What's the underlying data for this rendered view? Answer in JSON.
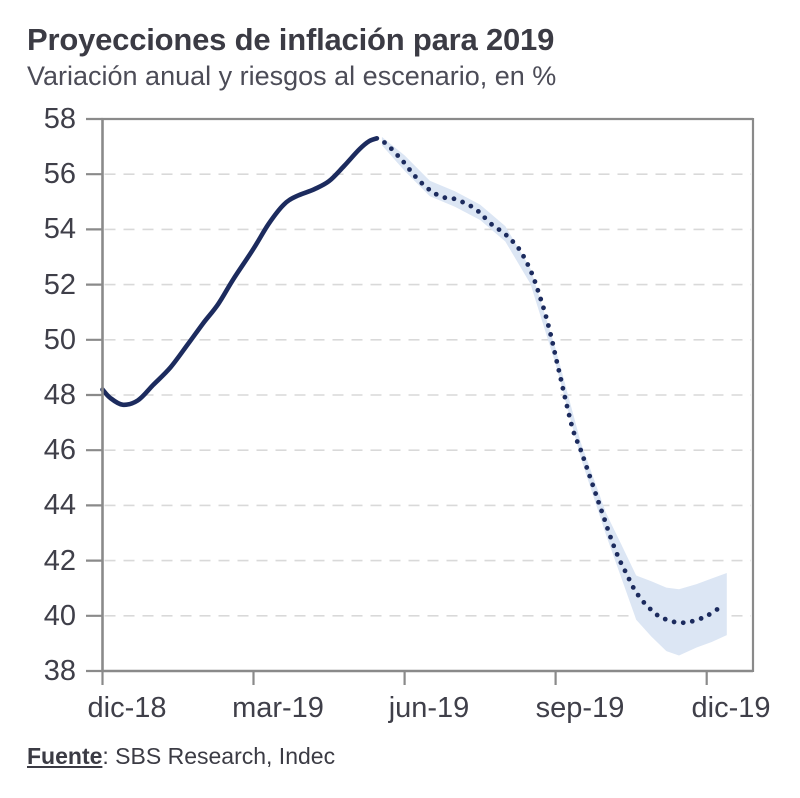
{
  "header": {
    "title": "Proyecciones de inflación para 2019",
    "subtitle": "Variación anual y riesgos al escenario, en %"
  },
  "footer": {
    "source_label": "Fuente",
    "source_separator": ": ",
    "source_text": "SBS Research, Indec"
  },
  "chart_data": {
    "type": "line",
    "title": "Proyecciones de inflación para 2019",
    "subtitle": "Variación anual y riesgos al escenario, en %",
    "ylim": [
      38,
      58
    ],
    "xlim_months": [
      0,
      12.92
    ],
    "x_unit": "month_index_from_dic18",
    "y_ticks": [
      58,
      56,
      54,
      52,
      50,
      48,
      46,
      44,
      42,
      40,
      38
    ],
    "x_ticks": [
      {
        "label": "dic-18",
        "m": 0
      },
      {
        "label": "mar-19",
        "m": 3
      },
      {
        "label": "jun-19",
        "m": 6
      },
      {
        "label": "sep-19",
        "m": 9
      },
      {
        "label": "dic-19",
        "m": 12
      }
    ],
    "grid": {
      "horizontal": true,
      "style": "dashed",
      "legend": false
    },
    "colors": {
      "line": "#1c2b5e",
      "band": "#dce6f4",
      "axis": "#8a8a8a",
      "grid": "#d9d9d9",
      "text": "#3f3f49"
    },
    "series": {
      "observed_solid": {
        "style": "solid",
        "points": [
          [
            0.0,
            48.2
          ],
          [
            0.15,
            47.9
          ],
          [
            0.4,
            47.65
          ],
          [
            0.7,
            47.8
          ],
          [
            1.0,
            48.35
          ],
          [
            1.35,
            49.0
          ],
          [
            1.7,
            49.85
          ],
          [
            2.0,
            50.6
          ],
          [
            2.3,
            51.3
          ],
          [
            2.6,
            52.2
          ],
          [
            3.0,
            53.3
          ],
          [
            3.3,
            54.2
          ],
          [
            3.6,
            54.9
          ],
          [
            3.85,
            55.2
          ],
          [
            4.2,
            55.45
          ],
          [
            4.5,
            55.75
          ],
          [
            4.8,
            56.3
          ],
          [
            5.1,
            56.9
          ],
          [
            5.3,
            57.2
          ],
          [
            5.45,
            57.3
          ]
        ]
      },
      "projection_dotted": {
        "style": "dotted",
        "points": [
          [
            5.6,
            57.15
          ],
          [
            5.75,
            56.9
          ],
          [
            5.9,
            56.6
          ],
          [
            6.0,
            56.4
          ],
          [
            6.15,
            56.05
          ],
          [
            6.3,
            55.75
          ],
          [
            6.45,
            55.5
          ],
          [
            6.6,
            55.3
          ],
          [
            6.8,
            55.15
          ],
          [
            7.0,
            55.1
          ],
          [
            7.2,
            54.95
          ],
          [
            7.4,
            54.75
          ],
          [
            7.55,
            54.5
          ],
          [
            7.75,
            54.15
          ],
          [
            7.95,
            53.9
          ],
          [
            8.1,
            53.65
          ],
          [
            8.25,
            53.35
          ],
          [
            8.4,
            52.9
          ],
          [
            8.55,
            52.3
          ],
          [
            8.7,
            51.5
          ],
          [
            8.8,
            50.9
          ],
          [
            8.9,
            50.2
          ],
          [
            9.0,
            49.4
          ],
          [
            9.1,
            48.6
          ],
          [
            9.2,
            47.8
          ],
          [
            9.35,
            46.7
          ],
          [
            9.5,
            46.0
          ],
          [
            9.65,
            45.2
          ],
          [
            9.8,
            44.4
          ],
          [
            9.95,
            43.6
          ],
          [
            10.1,
            42.8
          ],
          [
            10.25,
            42.1
          ],
          [
            10.4,
            41.55
          ],
          [
            10.55,
            41.0
          ],
          [
            10.7,
            40.6
          ],
          [
            10.85,
            40.3
          ],
          [
            11.0,
            40.05
          ],
          [
            11.15,
            39.9
          ],
          [
            11.35,
            39.78
          ],
          [
            11.55,
            39.75
          ],
          [
            11.75,
            39.82
          ],
          [
            11.95,
            39.95
          ],
          [
            12.1,
            40.1
          ],
          [
            12.3,
            40.35
          ]
        ]
      },
      "risk_band": {
        "style": "area",
        "points_lo_hi": [
          [
            5.55,
            57.05,
            57.35
          ],
          [
            6.0,
            56.12,
            56.68
          ],
          [
            6.5,
            55.2,
            55.76
          ],
          [
            7.0,
            54.82,
            55.38
          ],
          [
            7.5,
            54.34,
            54.9
          ],
          [
            8.0,
            53.56,
            54.12
          ],
          [
            8.5,
            52.02,
            52.58
          ],
          [
            9.0,
            49.12,
            49.68
          ],
          [
            9.5,
            45.72,
            46.28
          ],
          [
            10.0,
            42.93,
            43.73
          ],
          [
            10.3,
            41.4,
            42.6
          ],
          [
            10.6,
            39.86,
            41.46
          ],
          [
            10.9,
            39.25,
            41.25
          ],
          [
            11.2,
            38.72,
            41.02
          ],
          [
            11.45,
            38.56,
            40.96
          ],
          [
            11.8,
            38.85,
            41.15
          ],
          [
            12.1,
            39.05,
            41.35
          ],
          [
            12.4,
            39.3,
            41.55
          ]
        ]
      }
    }
  }
}
